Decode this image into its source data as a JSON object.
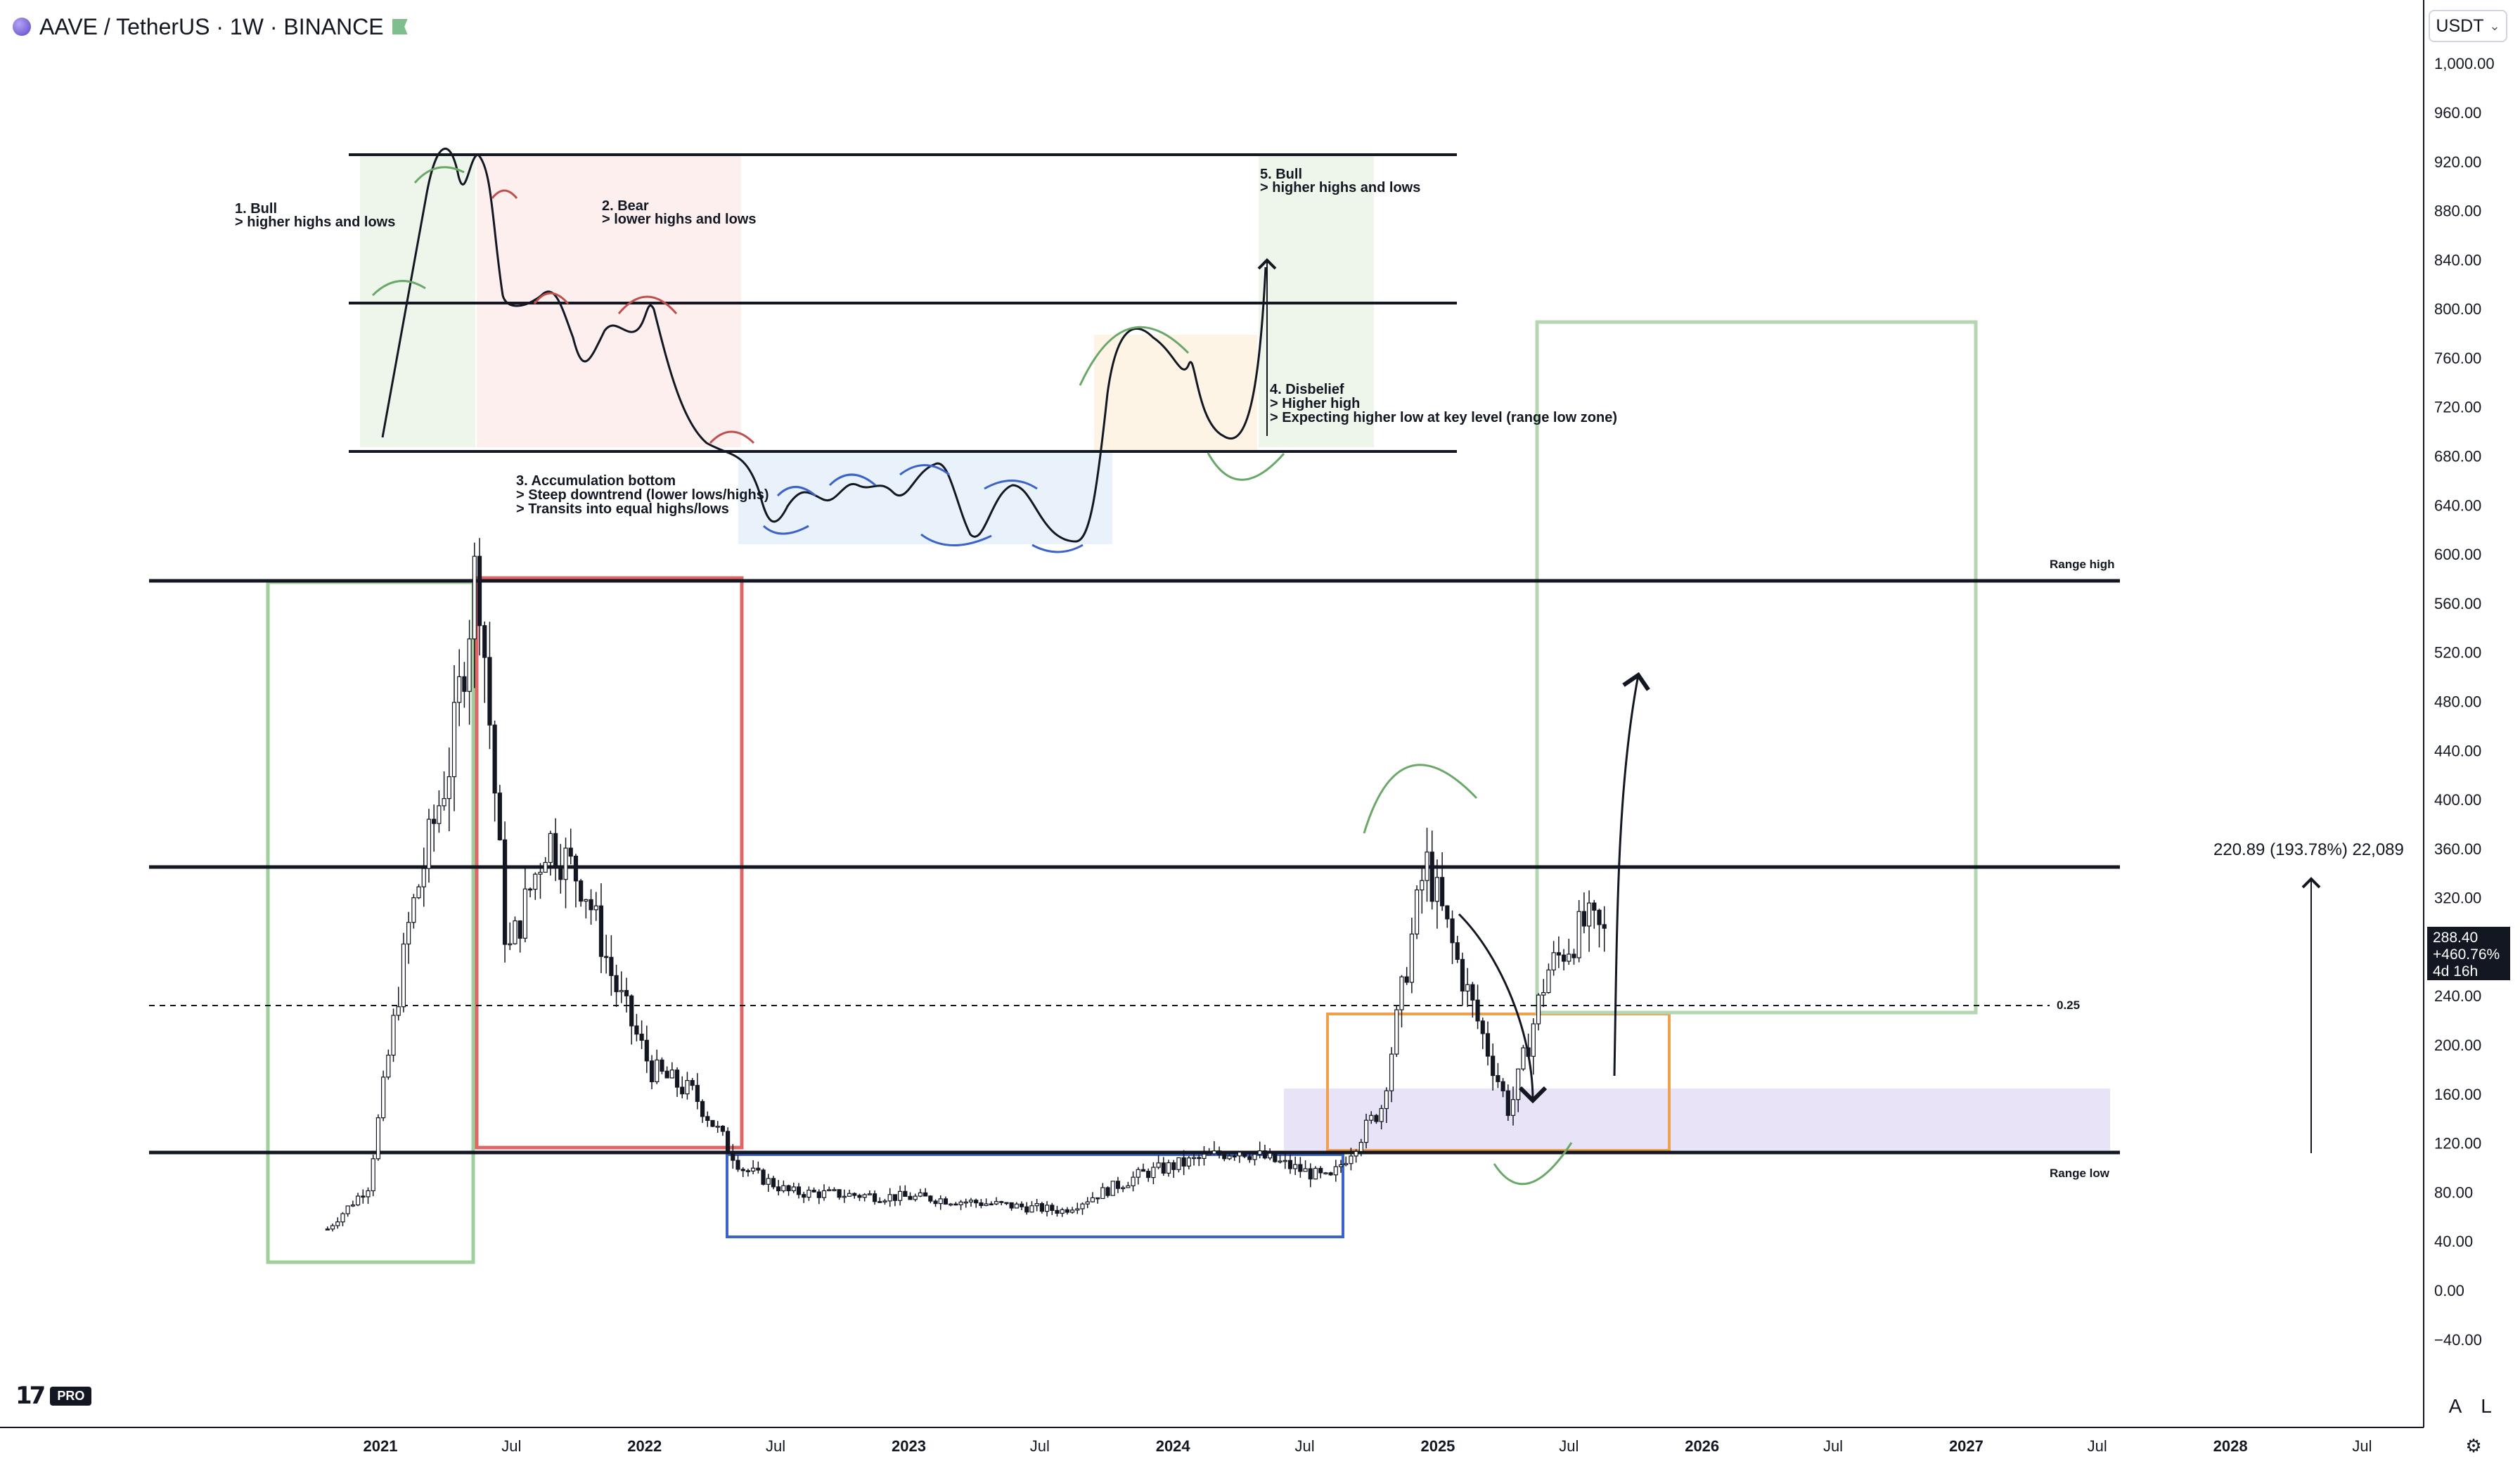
{
  "header": {
    "title": "AAVE / TetherUS · 1W · BINANCE"
  },
  "currency_selector": {
    "value": "USDT"
  },
  "last_price_badge": {
    "price": "288.40",
    "change": "+460.76%",
    "countdown": "4d 16h"
  },
  "measure_label": "220.89 (193.78%) 22,089",
  "brand": {
    "logo_text": "17",
    "badge": "PRO"
  },
  "corner_buttons": {
    "auto": "A",
    "log": "L"
  },
  "colors": {
    "bull_green": "#9fcf9b",
    "bear_red": "#e06666",
    "accumulation_blue": "#3c63c7",
    "zone_orange": "#f0a04b",
    "zone_purple": "#e8e3f7",
    "ink": "#131722"
  },
  "chart_data": {
    "type": "candlestick",
    "symbol": "AAVE / TetherUS",
    "interval": "1W",
    "exchange": "BINANCE",
    "y_axis": {
      "ylim": [
        -40,
        1000
      ],
      "tick_labels": [
        "1,000.00",
        "960.00",
        "920.00",
        "880.00",
        "840.00",
        "800.00",
        "760.00",
        "720.00",
        "680.00",
        "640.00",
        "600.00",
        "560.00",
        "520.00",
        "480.00",
        "440.00",
        "400.00",
        "360.00",
        "320.00",
        "280.00",
        "240.00",
        "200.00",
        "160.00",
        "120.00",
        "80.00",
        "40.00",
        "0.00",
        "−40.00"
      ],
      "tick_values": [
        1000,
        960,
        920,
        880,
        840,
        800,
        760,
        720,
        680,
        640,
        600,
        560,
        520,
        480,
        440,
        400,
        360,
        320,
        280,
        240,
        200,
        160,
        120,
        80,
        40,
        0,
        -40
      ]
    },
    "x_axis": {
      "xlim": [
        "2020-08-01",
        "2029-01-01"
      ],
      "ticks": [
        {
          "label": "2021",
          "date": "2021-01-01",
          "bold": true
        },
        {
          "label": "Jul",
          "date": "2021-07-01",
          "bold": false
        },
        {
          "label": "2022",
          "date": "2022-01-01",
          "bold": true
        },
        {
          "label": "Jul",
          "date": "2022-07-01",
          "bold": false
        },
        {
          "label": "2023",
          "date": "2023-01-01",
          "bold": true
        },
        {
          "label": "Jul",
          "date": "2023-07-01",
          "bold": false
        },
        {
          "label": "2024",
          "date": "2024-01-01",
          "bold": true
        },
        {
          "label": "Jul",
          "date": "2024-07-01",
          "bold": false
        },
        {
          "label": "2025",
          "date": "2025-01-01",
          "bold": true
        },
        {
          "label": "Jul",
          "date": "2025-07-01",
          "bold": false
        },
        {
          "label": "2026",
          "date": "2026-01-01",
          "bold": true
        },
        {
          "label": "Jul",
          "date": "2026-07-01",
          "bold": false
        },
        {
          "label": "2027",
          "date": "2027-01-01",
          "bold": true
        },
        {
          "label": "Jul",
          "date": "2027-07-01",
          "bold": false
        },
        {
          "label": "2028",
          "date": "2028-01-01",
          "bold": true
        },
        {
          "label": "Jul",
          "date": "2028-07-01",
          "bold": false
        }
      ]
    },
    "price_path_anchors": [
      {
        "date": "2020-10-20",
        "close": 50
      },
      {
        "date": "2020-12-15",
        "close": 85
      },
      {
        "date": "2021-02-10",
        "close": 300
      },
      {
        "date": "2021-04-10",
        "close": 440
      },
      {
        "date": "2021-05-15",
        "close": 600
      },
      {
        "date": "2021-06-25",
        "close": 270
      },
      {
        "date": "2021-08-20",
        "close": 370
      },
      {
        "date": "2021-10-10",
        "close": 330
      },
      {
        "date": "2021-11-20",
        "close": 250
      },
      {
        "date": "2022-01-10",
        "close": 180
      },
      {
        "date": "2022-03-10",
        "close": 160
      },
      {
        "date": "2022-05-15",
        "close": 100
      },
      {
        "date": "2022-07-20",
        "close": 80
      },
      {
        "date": "2023-02-01",
        "close": 75
      },
      {
        "date": "2023-08-01",
        "close": 65
      },
      {
        "date": "2023-11-20",
        "close": 95
      },
      {
        "date": "2024-04-01",
        "close": 115
      },
      {
        "date": "2024-08-05",
        "close": 90
      },
      {
        "date": "2024-10-15",
        "close": 150
      },
      {
        "date": "2024-12-15",
        "close": 350
      },
      {
        "date": "2025-02-01",
        "close": 260
      },
      {
        "date": "2025-04-10",
        "close": 145
      },
      {
        "date": "2025-06-01",
        "close": 260
      },
      {
        "date": "2025-07-25",
        "close": 300
      },
      {
        "date": "2025-08-20",
        "close": 288.4
      }
    ],
    "last_price": 288.4,
    "horizontal_levels": [
      {
        "label": "Range high",
        "price": 580
      },
      {
        "label": "",
        "price": 347
      },
      {
        "label": "0.25",
        "price": 230,
        "style": "dashed"
      },
      {
        "label": "Range low",
        "price": 114
      }
    ],
    "annotations": [
      {
        "text": [
          "1. Bull",
          "> higher highs and lows"
        ]
      },
      {
        "text": [
          "2. Bear",
          "> lower highs and lows"
        ]
      },
      {
        "text": [
          "3. Accumulation bottom",
          "> Steep downtrend (lower lows/highs)",
          "> Transits into equal highs/lows"
        ]
      },
      {
        "text": [
          "4. Disbelief",
          "> Higher high",
          "> Expecting higher low at key level (range low zone)"
        ]
      },
      {
        "text": [
          "5. Bull",
          "> higher highs and lows"
        ]
      }
    ],
    "legend": "none",
    "grid": false
  }
}
